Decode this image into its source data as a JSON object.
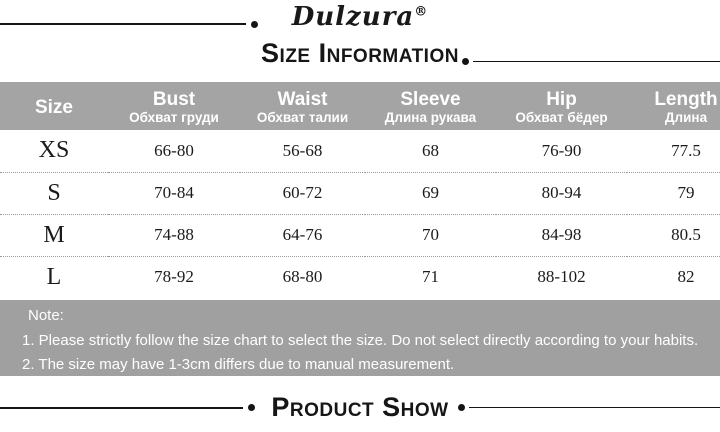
{
  "brand": {
    "name": "Dulzura",
    "reg": "®"
  },
  "titles": {
    "size_information": "Size Information",
    "product_show": "Product Show"
  },
  "table": {
    "columns": [
      {
        "label": "Size",
        "sub": ""
      },
      {
        "label": "Bust",
        "sub": "Обхват груди"
      },
      {
        "label": "Waist",
        "sub": "Обхват талии"
      },
      {
        "label": "Sleeve",
        "sub": "Длина рукава"
      },
      {
        "label": "Hip",
        "sub": "Обхват бёдер"
      },
      {
        "label": "Length",
        "sub": "Длина"
      }
    ],
    "rows": [
      {
        "size": "XS",
        "bust": "66-80",
        "waist": "56-68",
        "sleeve": "68",
        "hip": "76-90",
        "length": "77.5"
      },
      {
        "size": "S",
        "bust": "70-84",
        "waist": "60-72",
        "sleeve": "69",
        "hip": "80-94",
        "length": "79"
      },
      {
        "size": "M",
        "bust": "74-88",
        "waist": "64-76",
        "sleeve": "70",
        "hip": "84-98",
        "length": "80.5"
      },
      {
        "size": "L",
        "bust": "78-92",
        "waist": "68-80",
        "sleeve": "71",
        "hip": "88-102",
        "length": "82"
      }
    ]
  },
  "note": {
    "title": "Note:",
    "lines": [
      "1. Please strictly follow the size chart to select the size. Do not select directly according to your habits.",
      "2. The size may have 1-3cm differs due to manual measurement."
    ]
  },
  "colors": {
    "header_bg": "#a4a4a4",
    "note_bg": "#a0a0a0",
    "rule_black": "#141414",
    "text": "#1b1b1b",
    "header_text": "#ffffff"
  }
}
